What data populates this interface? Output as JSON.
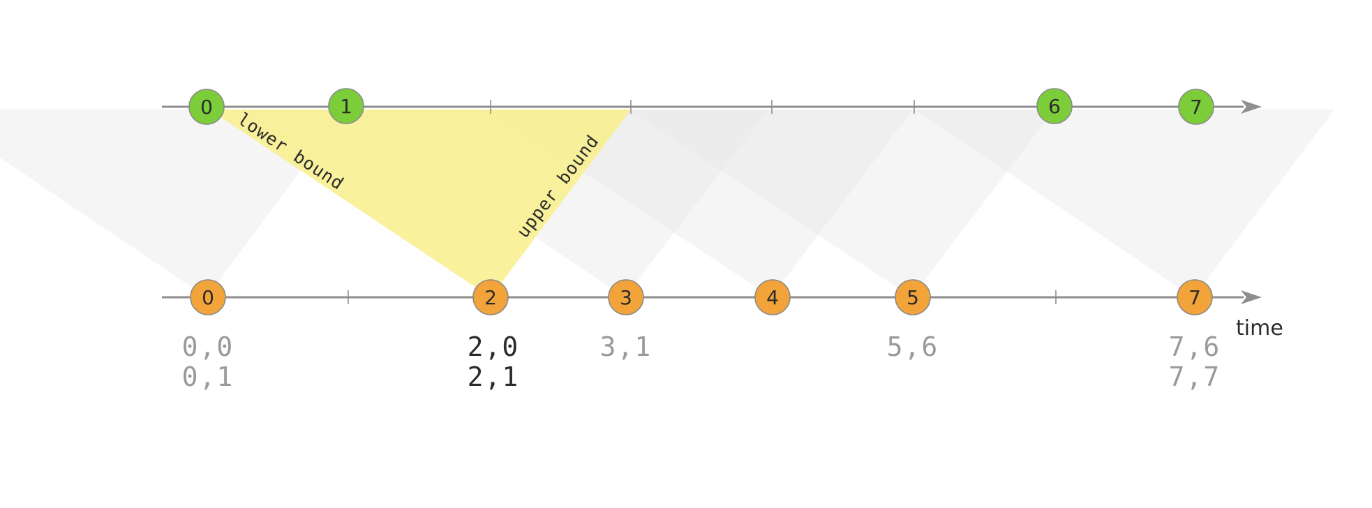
{
  "colors": {
    "top_node": "#7ccd3a",
    "bottom_node": "#f2a33a",
    "highlight": "#f8ee8a",
    "window_gray": "#e8e8e8",
    "pair_active": "#2b2b2b",
    "pair_inactive": "#9a9a9a"
  },
  "top_stream": {
    "nodes": [
      "0",
      "1",
      "6",
      "7"
    ]
  },
  "bottom_stream": {
    "nodes": [
      "0",
      "2",
      "3",
      "4",
      "5",
      "7"
    ]
  },
  "labels": {
    "lower_bound": "lower bound",
    "upper_bound": "upper bound",
    "time_axis": "time"
  },
  "join_results": [
    {
      "under": "0",
      "lines": [
        "0,0",
        "0,1"
      ],
      "active": false
    },
    {
      "under": "2",
      "lines": [
        "2,0",
        "2,1"
      ],
      "active": true
    },
    {
      "under": "3",
      "lines": [
        "3,1"
      ],
      "active": false
    },
    {
      "under": "5",
      "lines": [
        "5,6"
      ],
      "active": false
    },
    {
      "under": "7",
      "lines": [
        "7,6",
        "7,7"
      ],
      "active": false
    }
  ]
}
